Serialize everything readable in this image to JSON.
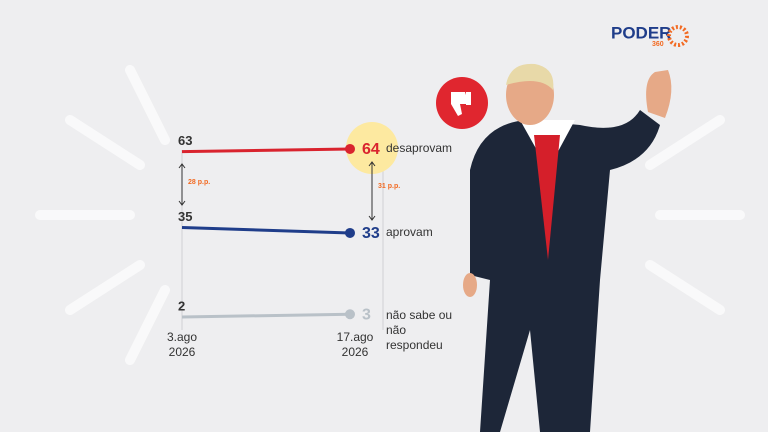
{
  "chart_data": {
    "type": "slope",
    "categories": [
      "3.ago 2026",
      "17.ago 2026"
    ],
    "series": [
      {
        "name": "desaprovam",
        "color": "#d9232e",
        "values": [
          63,
          64
        ]
      },
      {
        "name": "aprovam",
        "color": "#1f3d8a",
        "values": [
          35,
          33
        ]
      },
      {
        "name": "não sabe ou não respondeu",
        "color": "#b9c1c8",
        "values": [
          2,
          3
        ]
      }
    ],
    "ylim": [
      0,
      70
    ],
    "annotations": [
      "28 p.p.",
      "31 p.p."
    ]
  },
  "brand": {
    "name": "PODER",
    "sub": "360"
  }
}
